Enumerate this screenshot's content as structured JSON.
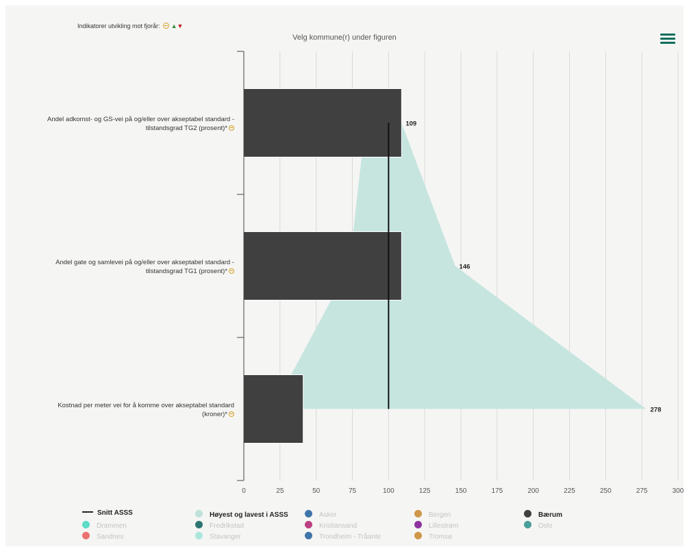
{
  "header": {
    "indicator_text": "Indikatorer utvikling mot fjorår:",
    "subtitle": "Velg kommune(r) under figuren",
    "menu_icon": "hamburger-menu-icon"
  },
  "chart_data": {
    "type": "bar",
    "orientation": "horizontal",
    "categories": [
      "Andel adkomst- og GS-vei på og/eller over akseptabel standard - tilstandsgrad TG2 (prosent)*",
      "Andel gate og samlevei på og/eller over akseptabel standard - tilstandsgrad TG1 (prosent)*",
      "Kostnad per meter vei for å komme over akseptabel standard (kroner)*"
    ],
    "category_lines": [
      [
        "Andel adkomst- og GS-vei på og/eller over akseptabel standard -",
        "tilstandsgrad TG2 (prosent)*"
      ],
      [
        "Andel gate og samlevei på og/eller over akseptabel standard -",
        "tilstandsgrad TG1 (prosent)*"
      ],
      [
        "Kostnad per meter vei for å komme over akseptabel standard",
        "(kroner)*"
      ]
    ],
    "indicator_icons": [
      "neutral",
      "neutral",
      "neutral"
    ],
    "series": [
      {
        "name": "Bærum",
        "values": [
          109,
          109,
          41
        ],
        "color": "#404040"
      }
    ],
    "range_series": {
      "name": "Høyest og lavest i ASSS",
      "low": [
        84,
        73,
        20
      ],
      "high": [
        109,
        146,
        278
      ],
      "color": "#c6e5df",
      "labels": [
        "109",
        "146",
        "278"
      ]
    },
    "average_series": {
      "name": "Snitt ASSS",
      "values": [
        100,
        100,
        100
      ],
      "color": "#111111"
    },
    "xlim": [
      0,
      300
    ],
    "xticks": [
      0,
      25,
      50,
      75,
      100,
      125,
      150,
      175,
      200,
      225,
      250,
      275,
      300
    ],
    "grid": true,
    "xlabel": "",
    "ylabel": ""
  },
  "legend": {
    "items": [
      {
        "label": "Snitt ASSS",
        "type": "line",
        "color": "#111111",
        "active": true
      },
      {
        "label": "Høyest og lavest i ASSS",
        "type": "dot",
        "color": "#bfe2db",
        "active": true
      },
      {
        "label": "Asker",
        "type": "dot",
        "color": "#1f5f9c",
        "active": false
      },
      {
        "label": "Bergen",
        "type": "dot",
        "color": "#c8862a",
        "active": false
      },
      {
        "label": "Bærum",
        "type": "dot",
        "color": "#404040",
        "active": true
      },
      {
        "label": "Drammen",
        "type": "dot",
        "color": "#3fd6c0",
        "active": false
      },
      {
        "label": "Fredrikstad",
        "type": "dot",
        "color": "#0b5e58",
        "active": false
      },
      {
        "label": "Kristiansand",
        "type": "dot",
        "color": "#b0206e",
        "active": false
      },
      {
        "label": "Lillestrøm",
        "type": "dot",
        "color": "#7a1190",
        "active": false
      },
      {
        "label": "Oslo",
        "type": "dot",
        "color": "#2d8f8a",
        "active": false
      },
      {
        "label": "Sandnes",
        "type": "dot",
        "color": "#e85a5a",
        "active": false
      },
      {
        "label": "Stavanger",
        "type": "dot",
        "color": "#9fe3d6",
        "active": false
      },
      {
        "label": "Trondheim - Tråante",
        "type": "dot",
        "color": "#1f5f9c",
        "active": false
      },
      {
        "label": "Tromsø",
        "type": "dot",
        "color": "#c8862a",
        "active": false
      }
    ]
  }
}
